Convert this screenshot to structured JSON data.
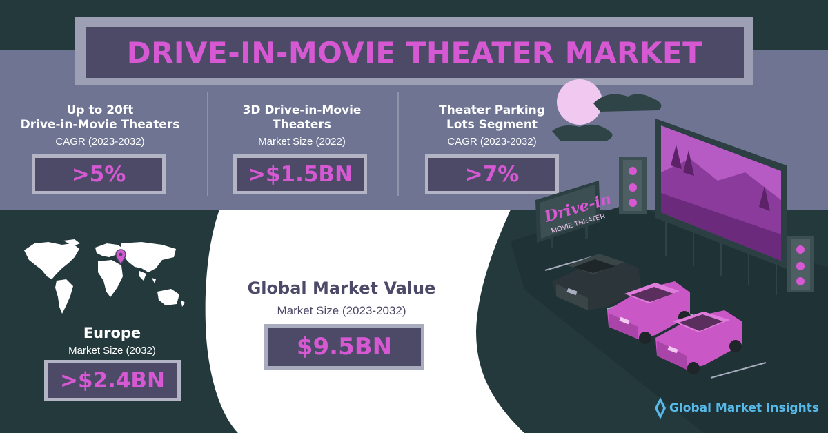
{
  "title": "DRIVE-IN-MOVIE THEATER MARKET",
  "stats": [
    {
      "heading_line1": "Up to 20ft",
      "heading_line2": "Drive-in-Movie Theaters",
      "metric": "CAGR (2023-2032)",
      "value": ">5%"
    },
    {
      "heading_line1": "3D Drive-in-Movie",
      "heading_line2": "Theaters",
      "metric": "Market Size (2022)",
      "value": ">$1.5BN"
    },
    {
      "heading_line1": "Theater Parking",
      "heading_line2": "Lots Segment",
      "metric": "CAGR (2023-2032)",
      "value": ">7%"
    }
  ],
  "global": {
    "title": "Global Market Value",
    "metric": "Market Size (2023-2032)",
    "value": "$9.5BN"
  },
  "europe": {
    "title": "Europe",
    "metric": "Market Size (2032)",
    "value": ">$2.4BN"
  },
  "billboard": {
    "line1": "Drive-in",
    "line2": "MOVIE THEATER"
  },
  "brand": {
    "name": "Global Market Insights",
    "icon": "gmi-diamond-logo-icon"
  },
  "colors": {
    "background": "#24393c",
    "band": "#6e7492",
    "accent": "#d659d3",
    "box": "#4d4a68",
    "brand": "#57b9e8"
  }
}
